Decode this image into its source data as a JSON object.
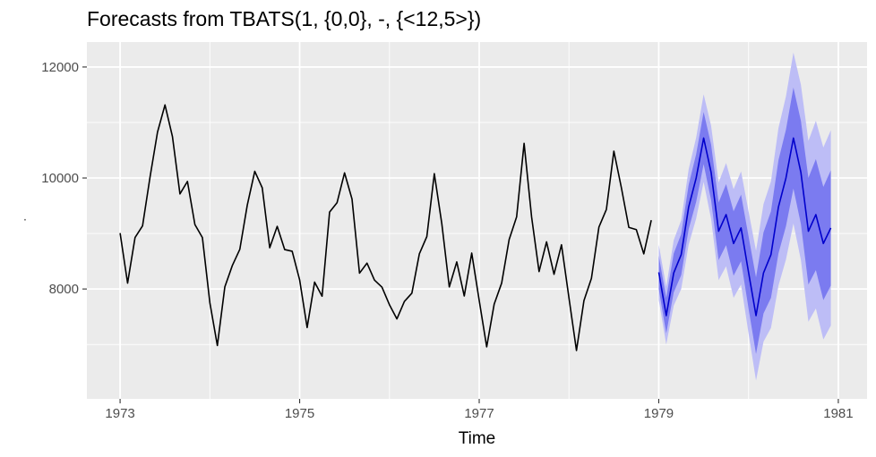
{
  "chart_data": {
    "type": "line",
    "title": "Forecasts from TBATS(1, {0,0}, -, {<12,5>})",
    "xlabel": "Time",
    "ylabel": ".",
    "xlim": [
      1972.63,
      1981.32
    ],
    "ylim": [
      6020,
      12450
    ],
    "x_ticks": [
      1973,
      1975,
      1977,
      1979,
      1981
    ],
    "x_tick_labels": [
      "1973",
      "1975",
      "1977",
      "1979",
      "1981"
    ],
    "y_ticks": [
      8000,
      10000,
      12000
    ],
    "y_tick_labels": [
      "8000",
      "10000",
      "12000"
    ],
    "grid": true,
    "legend": "none",
    "colors": {
      "panel": "#ebebeb",
      "grid": "#ffffff",
      "history": "#000000",
      "forecast": "#0000cc",
      "band80": "#7b7bf0",
      "band95": "#bdbdf6"
    },
    "series": [
      {
        "role": "history",
        "x_start": 1973,
        "frequency": 12,
        "values": [
          9007,
          8106,
          8928,
          9137,
          10017,
          10826,
          11317,
          10744,
          9713,
          9938,
          9161,
          8927,
          7750,
          6981,
          8038,
          8422,
          8714,
          9512,
          10120,
          9823,
          8743,
          9129,
          8710,
          8680,
          8162,
          7306,
          8124,
          7870,
          9387,
          9556,
          10093,
          9620,
          8285,
          8466,
          8160,
          8034,
          7717,
          7461,
          7776,
          7925,
          8634,
          8945,
          10078,
          9179,
          8037,
          8488,
          7874,
          8647,
          7792,
          6957,
          7726,
          8106,
          8890,
          9299,
          10625,
          9302,
          8314,
          8850,
          8265,
          8796,
          7836,
          6892,
          7791,
          8192,
          9115,
          9434,
          10484,
          9827,
          9110,
          9070,
          8633,
          9240
        ]
      },
      {
        "role": "forecast",
        "x_start": 1979,
        "frequency": 12,
        "mean": [
          8300,
          7520,
          8290,
          8620,
          9480,
          10000,
          10720,
          10100,
          9040,
          9340,
          8820,
          9100,
          8300,
          7520,
          8290,
          8620,
          9480,
          10000,
          10720,
          10100,
          9040,
          9340,
          8820,
          9100
        ],
        "lo80": [
          8000,
          7200,
          7940,
          8250,
          9080,
          9570,
          10250,
          9600,
          8520,
          8790,
          8240,
          8500,
          7650,
          6830,
          7560,
          7840,
          8640,
          9130,
          9810,
          9170,
          8080,
          8340,
          7800,
          8060
        ],
        "hi80": [
          8600,
          7840,
          8640,
          8990,
          9880,
          10430,
          11190,
          10600,
          9560,
          9890,
          9400,
          9700,
          8950,
          8210,
          9020,
          9400,
          10320,
          10870,
          11630,
          11030,
          10000,
          10340,
          9840,
          10140
        ],
        "lo95": [
          7800,
          7000,
          7700,
          8000,
          8800,
          9270,
          9930,
          9260,
          8160,
          8410,
          7840,
          8080,
          7200,
          6350,
          7050,
          7300,
          8060,
          8530,
          9180,
          8520,
          7410,
          7650,
          7090,
          7340
        ],
        "hi95": [
          8800,
          8040,
          8880,
          9240,
          10160,
          10730,
          11510,
          10940,
          9920,
          10270,
          9800,
          10120,
          9400,
          8690,
          9530,
          9940,
          10900,
          11470,
          12260,
          11680,
          10670,
          11030,
          10550,
          10860
        ]
      }
    ]
  }
}
